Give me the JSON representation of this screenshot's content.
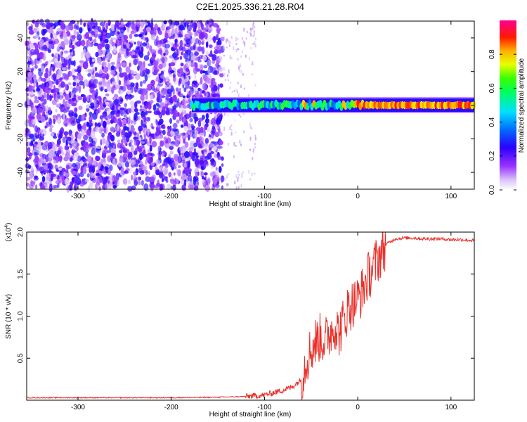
{
  "title": "C2E1.2025.336.21.28.R04",
  "chart_data": [
    {
      "type": "heatmap",
      "xlabel": "Height of straight line (km)",
      "ylabel": "Frequency (Hz)",
      "xlim": [
        -355,
        125
      ],
      "ylim": [
        -50,
        50
      ],
      "xticks": [
        -300,
        -200,
        -100,
        0,
        100
      ],
      "yticks": [
        -40,
        -20,
        0,
        20,
        40
      ],
      "colorbar": {
        "label": "Normalized spectral amplitude",
        "range": [
          0,
          1
        ],
        "ticks": [
          "0.0",
          "0.2",
          "0.4",
          "0.6",
          "0.8"
        ],
        "tick_values": [
          0.0,
          0.2,
          0.4,
          0.6,
          0.8
        ],
        "colormap": "rainbow (white-violet-blue-cyan-green-yellow-red-magenta)"
      },
      "features": {
        "noise_region_x": [
          -355,
          -145
        ],
        "noise_fading_x": [
          -145,
          -110
        ],
        "signal_band_start_x": -178,
        "signal_center_frequency_hz": 0,
        "signal_band_halfwidth_hz": 4
      },
      "grid": false
    },
    {
      "type": "line",
      "xlabel": "Height of straight line (km)",
      "ylabel": "SNR (10 * v/v)",
      "y_multiplier": "(x10^4)",
      "y_multiplier_base": "(x10",
      "y_multiplier_exp": "4",
      "y_multiplier_close": ")",
      "xlim": [
        -355,
        125
      ],
      "ylim": [
        0,
        20000
      ],
      "xticks": [
        -300,
        -200,
        -100,
        0,
        100
      ],
      "yticks": [
        0.5,
        1.0,
        1.5,
        2.0
      ],
      "ytick_labels": [
        "0.5",
        "1.0",
        "1.5",
        "2.0"
      ],
      "series": [
        {
          "color": "#e8302a",
          "x": [
            -355,
            -300,
            -250,
            -200,
            -150,
            -120,
            -100,
            -90,
            -80,
            -70,
            -60,
            -55,
            -50,
            -45,
            -40,
            -35,
            -30,
            -25,
            -20,
            -15,
            -10,
            -5,
            0,
            5,
            10,
            15,
            20,
            25,
            30,
            40,
            50,
            60,
            70,
            80,
            90,
            100,
            110,
            125
          ],
          "y": [
            300,
            300,
            300,
            300,
            350,
            450,
            600,
            900,
            1200,
            1600,
            2500,
            5000,
            6000,
            7000,
            7500,
            7000,
            8000,
            9000,
            8000,
            9500,
            11000,
            11500,
            12000,
            13000,
            14500,
            15500,
            16500,
            17500,
            18500,
            19200,
            19300,
            19300,
            19200,
            19200,
            19200,
            19100,
            19100,
            19000
          ]
        }
      ],
      "grid": false
    }
  ]
}
